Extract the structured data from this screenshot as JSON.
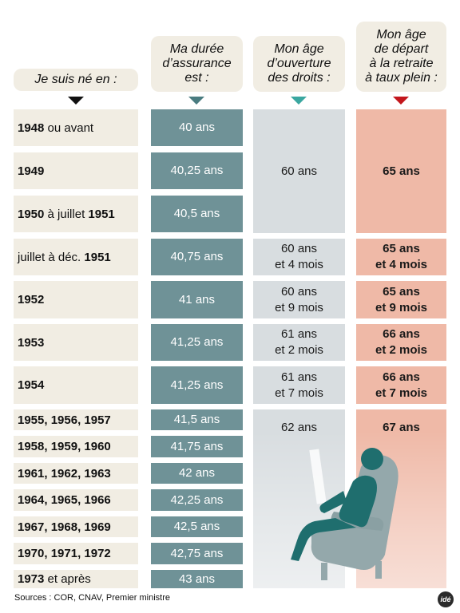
{
  "headers": {
    "col1": "Je suis né en :",
    "col2_line1": "Ma durée",
    "col2_line2": "d’assurance",
    "col2_line3": "est :",
    "col3_line1": "Mon âge",
    "col3_line2": "d’ouverture",
    "col3_line3": "des droits :",
    "col4_line1": "Mon âge",
    "col4_line2": "de départ",
    "col4_line3": "à la retraite",
    "col4_line4": "à taux plein :"
  },
  "colors": {
    "header_bg": "#f1ede3",
    "col2": "#6f9297",
    "col3": "#d8dde0",
    "col4": "#efb9a7",
    "arrow_col2": "#4a7c80",
    "arrow_col3": "#3aa7a0",
    "arrow_col4": "#c3161c"
  },
  "rows": [
    {
      "bold": "1948",
      "rest": " ou avant",
      "duration": "40 ans"
    },
    {
      "bold": "1949",
      "rest": "",
      "duration": "40,25 ans"
    },
    {
      "bold": "1950",
      "rest": " à juillet ",
      "bold2": "1951",
      "duration": "40,5 ans"
    },
    {
      "pre": "juillet à déc. ",
      "bold": "1951",
      "rest": "",
      "duration": "40,75 ans"
    },
    {
      "bold": "1952",
      "rest": "",
      "duration": "41 ans"
    },
    {
      "bold": "1953",
      "rest": "",
      "duration": "41,25 ans"
    },
    {
      "bold": "1954",
      "rest": "",
      "duration": "41,25 ans"
    },
    {
      "bold": "1955, 1956, 1957",
      "rest": "",
      "duration": "41,5 ans"
    },
    {
      "bold": "1958, 1959, 1960",
      "rest": "",
      "duration": "41,75 ans"
    },
    {
      "bold": "1961, 1962, 1963",
      "rest": "",
      "duration": "42 ans"
    },
    {
      "bold": "1964, 1965, 1966",
      "rest": "",
      "duration": "42,25 ans"
    },
    {
      "bold": "1967, 1968, 1969",
      "rest": "",
      "duration": "42,5 ans"
    },
    {
      "bold": "1970, 1971, 1972",
      "rest": "",
      "duration": "42,75 ans"
    },
    {
      "bold": "1973",
      "rest": " et après",
      "duration": "43 ans"
    }
  ],
  "opening_age": {
    "g1": "60 ans",
    "g2_l1": "60 ans",
    "g2_l2": "et 4 mois",
    "g3_l1": "60 ans",
    "g3_l2": "et 9 mois",
    "g4_l1": "61 ans",
    "g4_l2": "et 2 mois",
    "g5_l1": "61 ans",
    "g5_l2": "et 7 mois",
    "g6": "62 ans"
  },
  "full_rate_age": {
    "g1": "65 ans",
    "g2_l1": "65 ans",
    "g2_l2": "et 4 mois",
    "g3_l1": "65 ans",
    "g3_l2": "et 9 mois",
    "g4_l1": "66 ans",
    "g4_l2": "et 2 mois",
    "g5_l1": "66 ans",
    "g5_l2": "et 7 mois",
    "g6": "67 ans"
  },
  "footer": {
    "sources": "Sources : COR, CNAV, Premier ministre",
    "logo": "idé"
  },
  "icons": {
    "armchair": "person-in-armchair-icon"
  }
}
